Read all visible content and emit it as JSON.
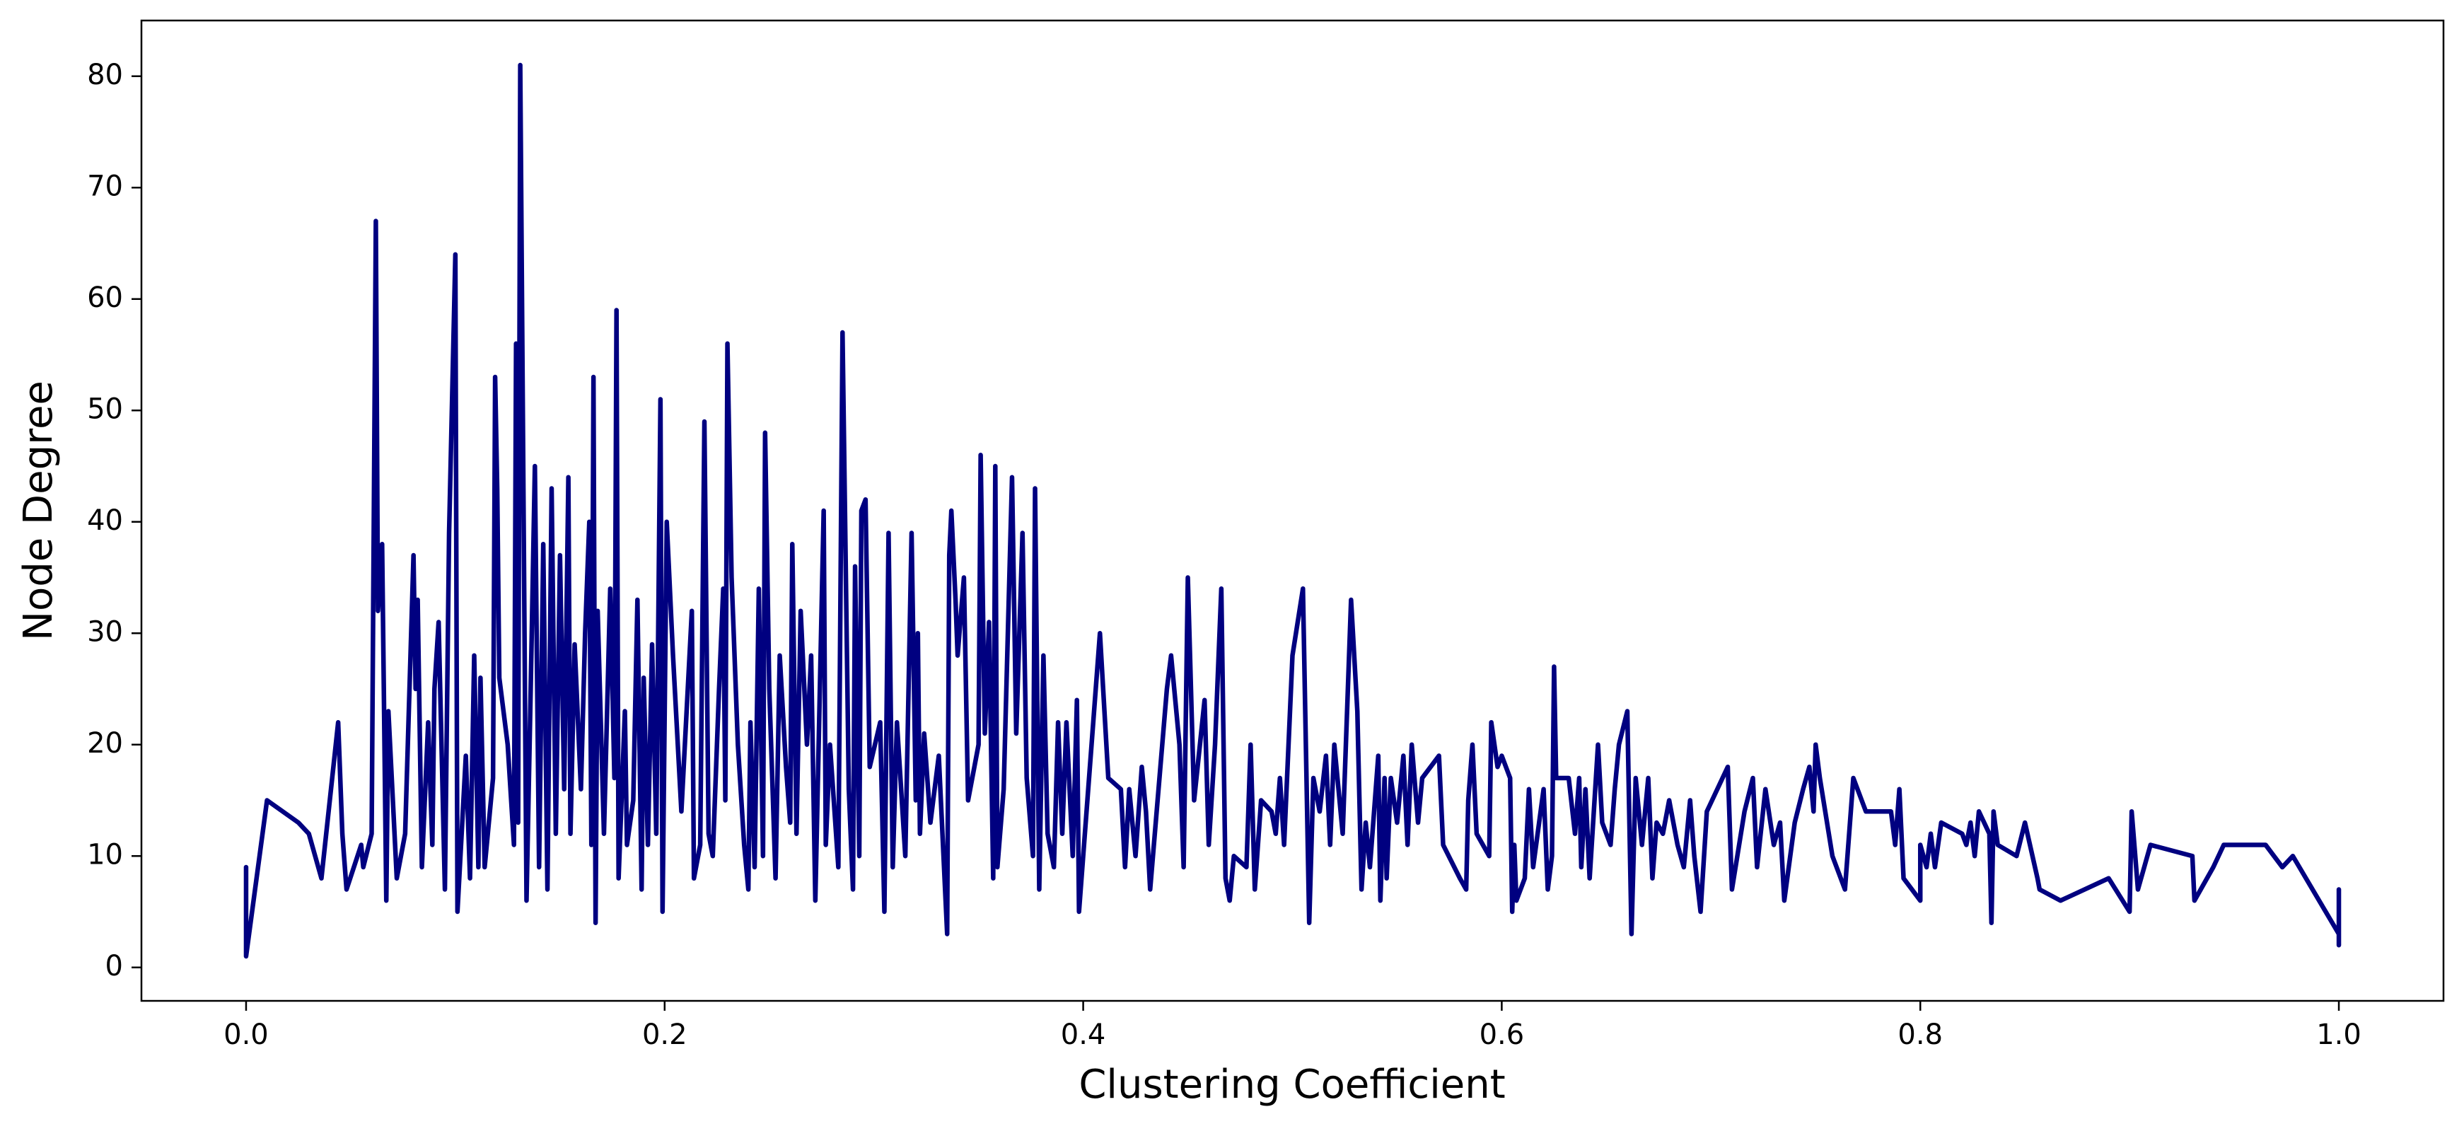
{
  "chart_data": {
    "type": "line",
    "xlabel": "Clustering Coefficient",
    "ylabel": "Node Degree",
    "color": "#000080",
    "xlim": [
      -0.05,
      1.05
    ],
    "ylim": [
      -3,
      85
    ],
    "xticks": [
      {
        "value": 0,
        "label": "0.0"
      },
      {
        "value": 0.2,
        "label": "0.2"
      },
      {
        "value": 0.4,
        "label": "0.4"
      },
      {
        "value": 0.6,
        "label": "0.6"
      },
      {
        "value": 0.8,
        "label": "0.8"
      },
      {
        "value": 1,
        "label": "1.0"
      }
    ],
    "yticks": [
      0,
      10,
      20,
      30,
      40,
      50,
      60,
      70,
      80
    ],
    "x": [
      0,
      0,
      0.01,
      0.025,
      0.03,
      0.036,
      0.044,
      0.046,
      0.048,
      0.055,
      0.056,
      0.06,
      0.062,
      0.063,
      0.065,
      0.067,
      0.068,
      0.072,
      0.076,
      0.08,
      0.081,
      0.082,
      0.084,
      0.087,
      0.089,
      0.09,
      0.092,
      0.095,
      0.097,
      0.1,
      0.101,
      0.105,
      0.107,
      0.109,
      0.111,
      0.112,
      0.114,
      0.118,
      0.119,
      0.12,
      0.121,
      0.125,
      0.128,
      0.129,
      0.13,
      0.131,
      0.134,
      0.136,
      0.138,
      0.14,
      0.142,
      0.144,
      0.146,
      0.148,
      0.15,
      0.152,
      0.154,
      0.155,
      0.157,
      0.16,
      0.162,
      0.164,
      0.165,
      0.166,
      0.167,
      0.168,
      0.171,
      0.174,
      0.176,
      0.177,
      0.178,
      0.181,
      0.182,
      0.185,
      0.187,
      0.189,
      0.19,
      0.192,
      0.194,
      0.196,
      0.198,
      0.199,
      0.201,
      0.204,
      0.208,
      0.213,
      0.214,
      0.217,
      0.219,
      0.221,
      0.223,
      0.226,
      0.228,
      0.229,
      0.23,
      0.232,
      0.235,
      0.238,
      0.24,
      0.241,
      0.243,
      0.245,
      0.247,
      0.248,
      0.25,
      0.253,
      0.255,
      0.258,
      0.26,
      0.261,
      0.263,
      0.265,
      0.268,
      0.27,
      0.272,
      0.276,
      0.277,
      0.279,
      0.283,
      0.285,
      0.288,
      0.29,
      0.291,
      0.293,
      0.294,
      0.296,
      0.298,
      0.303,
      0.305,
      0.307,
      0.309,
      0.311,
      0.315,
      0.318,
      0.32,
      0.321,
      0.322,
      0.324,
      0.327,
      0.331,
      0.333,
      0.335,
      0.336,
      0.337,
      0.339,
      0.34,
      0.343,
      0.345,
      0.35,
      0.351,
      0.353,
      0.355,
      0.357,
      0.358,
      0.359,
      0.362,
      0.366,
      0.368,
      0.371,
      0.373,
      0.376,
      0.377,
      0.379,
      0.381,
      0.383,
      0.386,
      0.388,
      0.39,
      0.392,
      0.395,
      0.397,
      0.398,
      0.404,
      0.408,
      0.412,
      0.418,
      0.42,
      0.422,
      0.425,
      0.428,
      0.43,
      0.432,
      0.44,
      0.442,
      0.446,
      0.448,
      0.45,
      0.453,
      0.458,
      0.46,
      0.463,
      0.466,
      0.468,
      0.47,
      0.472,
      0.478,
      0.48,
      0.482,
      0.485,
      0.49,
      0.492,
      0.494,
      0.496,
      0.5,
      0.505,
      0.508,
      0.51,
      0.513,
      0.516,
      0.518,
      0.52,
      0.524,
      0.528,
      0.531,
      0.533,
      0.535,
      0.537,
      0.541,
      0.542,
      0.544,
      0.545,
      0.547,
      0.55,
      0.553,
      0.555,
      0.557,
      0.56,
      0.562,
      0.57,
      0.572,
      0.58,
      0.583,
      0.584,
      0.586,
      0.588,
      0.594,
      0.595,
      0.598,
      0.6,
      0.604,
      0.605,
      0.606,
      0.607,
      0.611,
      0.613,
      0.615,
      0.62,
      0.622,
      0.624,
      0.625,
      0.626,
      0.632,
      0.635,
      0.637,
      0.638,
      0.64,
      0.642,
      0.644,
      0.646,
      0.648,
      0.652,
      0.654,
      0.656,
      0.66,
      0.662,
      0.664,
      0.667,
      0.67,
      0.672,
      0.674,
      0.677,
      0.68,
      0.684,
      0.687,
      0.69,
      0.692,
      0.695,
      0.698,
      0.708,
      0.71,
      0.716,
      0.72,
      0.722,
      0.726,
      0.73,
      0.733,
      0.735,
      0.74,
      0.744,
      0.747,
      0.749,
      0.75,
      0.752,
      0.758,
      0.764,
      0.768,
      0.774,
      0.786,
      0.788,
      0.79,
      0.792,
      0.8,
      0.8,
      0.803,
      0.805,
      0.807,
      0.81,
      0.82,
      0.822,
      0.824,
      0.826,
      0.828,
      0.833,
      0.834,
      0.835,
      0.837,
      0.846,
      0.85,
      0.856,
      0.857,
      0.867,
      0.89,
      0.9,
      0.901,
      0.904,
      0.91,
      0.93,
      0.931,
      0.94,
      0.945,
      0.965,
      0.973,
      0.978,
      1,
      1,
      1
    ],
    "values": [
      9,
      1,
      15,
      13,
      12,
      8,
      22,
      12,
      7,
      11,
      9,
      12,
      67,
      32,
      38,
      6,
      23,
      8,
      12,
      37,
      25,
      33,
      9,
      22,
      11,
      25,
      31,
      7,
      39,
      64,
      5,
      19,
      8,
      28,
      9,
      26,
      9,
      17,
      53,
      43,
      26,
      20,
      11,
      56,
      13,
      81,
      6,
      25,
      45,
      9,
      38,
      7,
      43,
      12,
      37,
      16,
      44,
      12,
      29,
      16,
      30,
      40,
      11,
      53,
      4,
      32,
      12,
      34,
      17,
      59,
      8,
      23,
      11,
      15,
      33,
      7,
      26,
      11,
      29,
      12,
      51,
      5,
      40,
      28,
      14,
      32,
      8,
      11,
      49,
      12,
      10,
      25,
      34,
      15,
      56,
      35,
      20,
      11,
      7,
      22,
      9,
      34,
      10,
      48,
      25,
      8,
      28,
      18,
      13,
      38,
      12,
      32,
      20,
      28,
      6,
      41,
      11,
      20,
      9,
      57,
      16,
      7,
      36,
      10,
      41,
      42,
      18,
      22,
      5,
      39,
      9,
      22,
      10,
      39,
      15,
      30,
      12,
      21,
      13,
      19,
      11,
      3,
      37,
      41,
      33,
      28,
      35,
      15,
      20,
      46,
      21,
      31,
      8,
      45,
      9,
      16,
      44,
      21,
      39,
      17,
      10,
      43,
      7,
      28,
      12,
      9,
      22,
      12,
      22,
      10,
      24,
      5,
      20,
      30,
      17,
      16,
      9,
      16,
      10,
      18,
      14,
      7,
      25,
      28,
      20,
      9,
      35,
      15,
      24,
      11,
      20,
      34,
      8,
      6,
      10,
      9,
      20,
      7,
      15,
      14,
      12,
      17,
      11,
      28,
      34,
      4,
      17,
      14,
      19,
      11,
      20,
      12,
      33,
      23,
      7,
      13,
      9,
      19,
      6,
      17,
      8,
      17,
      13,
      19,
      11,
      20,
      13,
      17,
      19,
      11,
      8,
      7,
      15,
      20,
      12,
      10,
      22,
      18,
      19,
      17,
      5,
      11,
      6,
      8,
      16,
      9,
      16,
      7,
      10,
      27,
      17,
      17,
      12,
      17,
      9,
      16,
      8,
      14,
      20,
      13,
      11,
      16,
      20,
      23,
      3,
      17,
      11,
      17,
      8,
      13,
      12,
      15,
      11,
      9,
      15,
      10,
      5,
      14,
      18,
      7,
      14,
      17,
      9,
      16,
      11,
      13,
      6,
      13,
      16,
      18,
      14,
      20,
      17,
      10,
      7,
      17,
      14,
      14,
      11,
      16,
      8,
      6,
      11,
      9,
      12,
      9,
      13,
      12,
      11,
      13,
      10,
      14,
      12,
      4,
      14,
      11,
      10,
      13,
      8,
      7,
      6,
      8,
      5,
      14,
      7,
      11,
      10,
      6,
      9,
      11,
      11,
      9,
      10,
      3,
      2,
      7
    ]
  }
}
